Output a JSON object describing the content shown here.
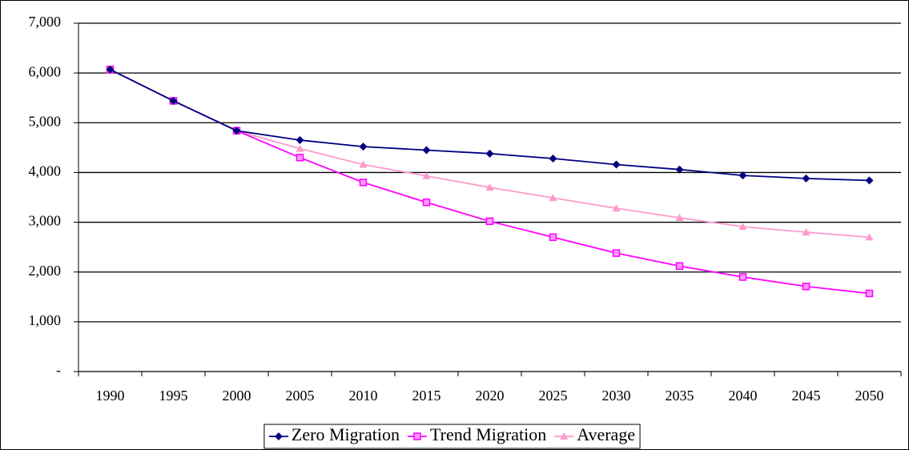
{
  "chart_data": {
    "type": "line",
    "categories": [
      "1990",
      "1995",
      "2000",
      "2005",
      "2010",
      "2015",
      "2020",
      "2025",
      "2030",
      "2035",
      "2040",
      "2045",
      "2050"
    ],
    "series": [
      {
        "name": "Zero Migration",
        "color": "#000080",
        "marker": "diamond",
        "values": [
          6070,
          5440,
          4840,
          4650,
          4520,
          4450,
          4380,
          4280,
          4160,
          4060,
          3940,
          3880,
          3840
        ]
      },
      {
        "name": "Trend Migration",
        "color": "#ff00ff",
        "marker": "square",
        "values": [
          6070,
          5440,
          4840,
          4300,
          3800,
          3400,
          3020,
          2700,
          2380,
          2120,
          1900,
          1710,
          1570
        ]
      },
      {
        "name": "Average",
        "color": "#ff99cc",
        "marker": "triangle",
        "values": [
          6070,
          5440,
          4840,
          4480,
          4160,
          3930,
          3700,
          3490,
          3280,
          3090,
          2910,
          2800,
          2700
        ]
      }
    ],
    "ylim": [
      0,
      7000
    ],
    "yticks": [
      {
        "value": 0,
        "label": "-"
      },
      {
        "value": 1000,
        "label": "1,000"
      },
      {
        "value": 2000,
        "label": "2,000"
      },
      {
        "value": 3000,
        "label": "3,000"
      },
      {
        "value": 4000,
        "label": "4,000"
      },
      {
        "value": 5000,
        "label": "5,000"
      },
      {
        "value": 6000,
        "label": "6,000"
      },
      {
        "value": 7000,
        "label": "7,000"
      }
    ],
    "grid": true,
    "legend": "bottom"
  }
}
